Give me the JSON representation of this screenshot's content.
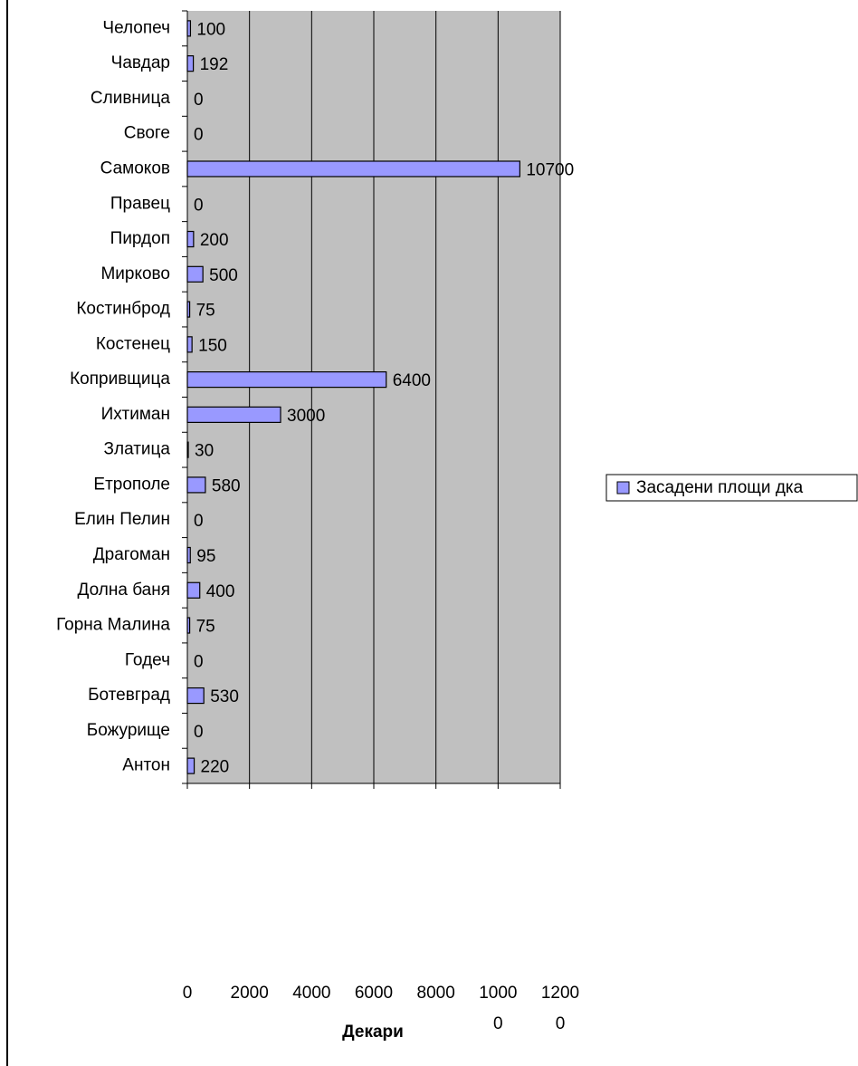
{
  "chart_data": {
    "type": "bar",
    "orientation": "horizontal",
    "x_label": "Декари",
    "categories": [
      "Антон",
      "Божурище",
      "Ботевград",
      "Годеч",
      "Горна Малина",
      "Долна баня",
      "Драгоман",
      "Елин Пелин",
      "Етрополе",
      "Златица",
      "Ихтиман",
      "Копривщица",
      "Костенец",
      "Костинброд",
      "Мирково",
      "Пирдоп",
      "Правец",
      "Самоков",
      "Своге",
      "Сливница",
      "Чавдар",
      "Челопеч"
    ],
    "series": [
      {
        "name": "Засадени площи дка",
        "color": "#9999ff",
        "values": [
          220,
          0,
          530,
          0,
          75,
          400,
          95,
          0,
          580,
          30,
          3000,
          6400,
          150,
          75,
          500,
          200,
          0,
          10700,
          0,
          0,
          192,
          100
        ]
      }
    ],
    "xlim": [
      0,
      12000
    ],
    "xticks": [
      0,
      2000,
      4000,
      6000,
      8000,
      10000,
      12000
    ],
    "grid": true,
    "legend": "right"
  }
}
